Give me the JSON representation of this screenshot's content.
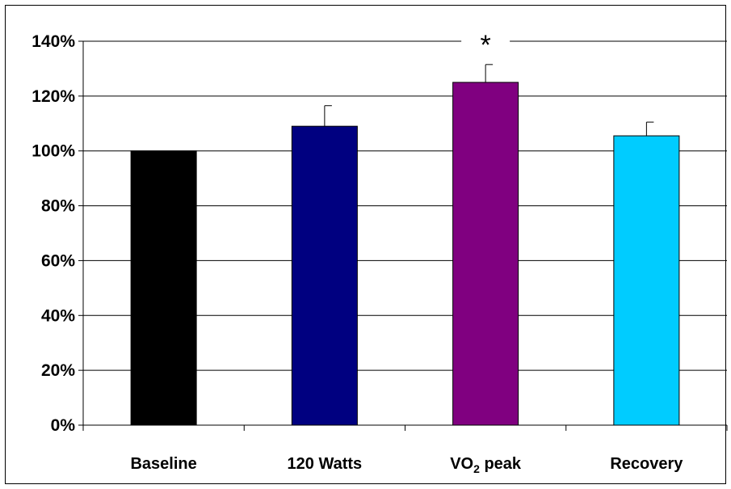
{
  "chart_data": {
    "type": "bar",
    "title": "",
    "xlabel": "",
    "ylabel": "",
    "categories": [
      "Baseline",
      "120 Watts",
      "VO2 peak",
      "Recovery"
    ],
    "category_labels": [
      {
        "main": "Baseline",
        "sub": "",
        "rest": ""
      },
      {
        "main": "120 Watts",
        "sub": "",
        "rest": ""
      },
      {
        "main": "VO",
        "sub": "2",
        "rest": " peak"
      },
      {
        "main": "Recovery",
        "sub": "",
        "rest": ""
      }
    ],
    "values": [
      100,
      109,
      125,
      105.5
    ],
    "error_upper": [
      0,
      7.5,
      6.5,
      5
    ],
    "colors": [
      "#000000",
      "#000080",
      "#800080",
      "#00ccff"
    ],
    "ylim": [
      0,
      140
    ],
    "yticks": [
      0,
      20,
      40,
      60,
      80,
      100,
      120,
      140
    ],
    "ytick_labels": [
      "0%",
      "20%",
      "40%",
      "60%",
      "80%",
      "100%",
      "120%",
      "140%"
    ],
    "grid": true,
    "annotations": [
      {
        "text": "*",
        "category": "VO2 peak",
        "y": 140
      }
    ]
  }
}
